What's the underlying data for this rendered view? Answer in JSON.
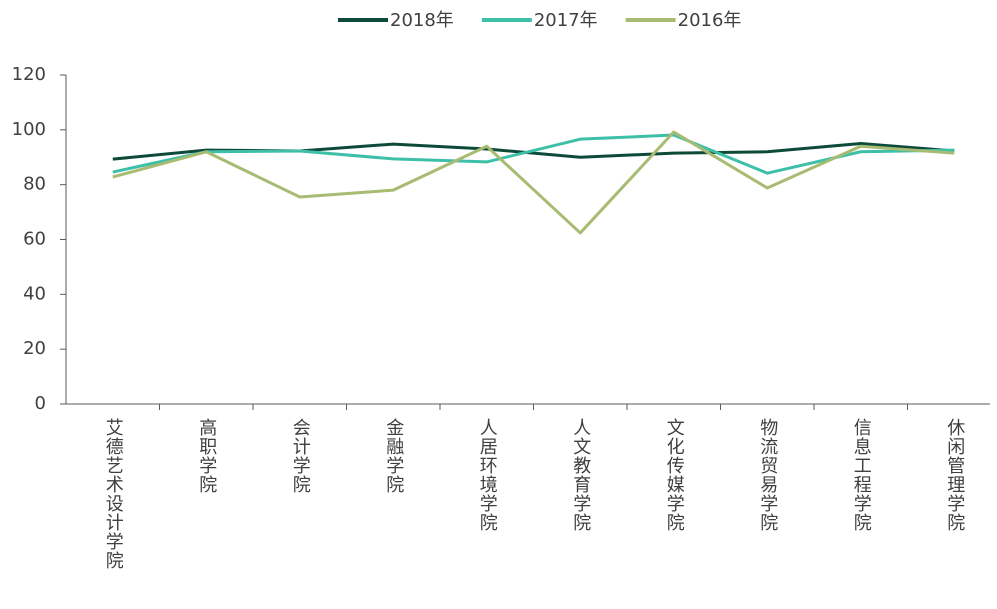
{
  "chart_data": {
    "type": "line",
    "categories": [
      "艾德艺术设计学院",
      "高职学院",
      "会计学院",
      "金融学院",
      "人居环境学院",
      "人文教育学院",
      "文化传媒学院",
      "物流贸易学院",
      "信息工程学院",
      "休闲管理学院"
    ],
    "series": [
      {
        "name": "2018年",
        "color": "#0d4a3a",
        "values": [
          89.3,
          92.6,
          92.3,
          94.8,
          93,
          90,
          91.5,
          92,
          95,
          92.3
        ]
      },
      {
        "name": "2017年",
        "color": "#3dbfa8",
        "values": [
          84.6,
          92,
          92.3,
          89.4,
          88.3,
          96.6,
          98.1,
          84.2,
          92,
          92.6
        ]
      },
      {
        "name": "2016年",
        "color": "#a8bb72",
        "values": [
          82.8,
          92,
          75.5,
          78,
          94,
          62.4,
          99.2,
          78.8,
          94,
          91.5
        ]
      }
    ],
    "ylim": [
      0,
      120
    ],
    "yticks": [
      0,
      20,
      40,
      60,
      80,
      100,
      120
    ],
    "legend": "top"
  }
}
